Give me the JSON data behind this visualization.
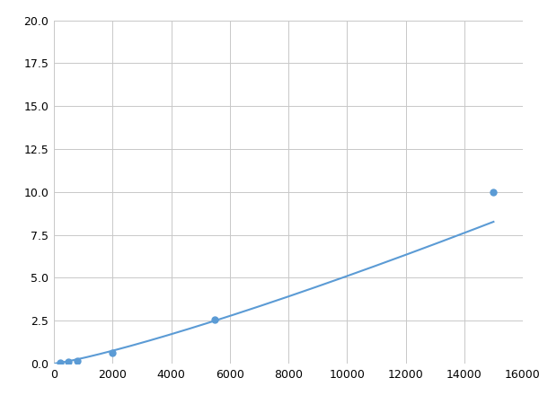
{
  "x": [
    200,
    500,
    800,
    2000,
    5500,
    15000
  ],
  "y": [
    0.07,
    0.13,
    0.18,
    0.65,
    2.55,
    10.0
  ],
  "xlim": [
    0,
    16000
  ],
  "ylim": [
    0,
    20
  ],
  "xticks": [
    0,
    2000,
    4000,
    6000,
    8000,
    10000,
    12000,
    14000,
    16000
  ],
  "yticks": [
    0.0,
    2.5,
    5.0,
    7.5,
    10.0,
    12.5,
    15.0,
    17.5,
    20.0
  ],
  "line_color": "#5b9bd5",
  "marker_color": "#5b9bd5",
  "background_color": "#ffffff",
  "grid_color": "#c8c8c8",
  "marker_size": 5,
  "line_width": 1.5,
  "figsize": [
    6.0,
    4.5
  ],
  "dpi": 100
}
